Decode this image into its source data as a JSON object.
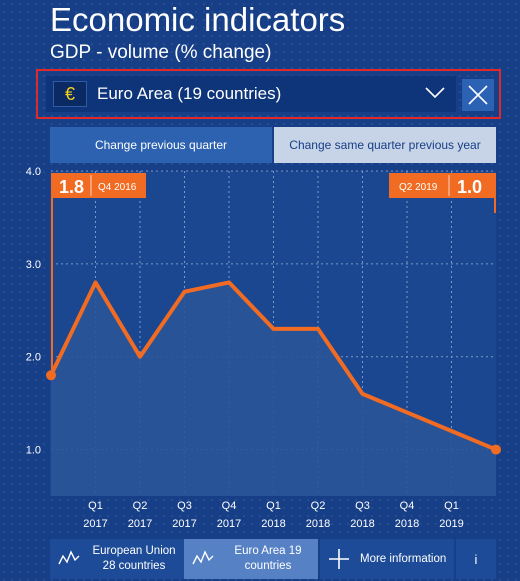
{
  "header": {
    "title": "Economic indicators",
    "subtitle": "GDP - volume (% change)"
  },
  "selector": {
    "flag_symbol": "€",
    "selected": "Euro Area (19 countries)"
  },
  "tabs": [
    {
      "label": "Change previous quarter",
      "active": false
    },
    {
      "label": "Change same quarter previous year",
      "active": true
    }
  ],
  "chart_data": {
    "type": "area",
    "yticks": [
      "4.0",
      "3.0",
      "2.0",
      "1.0"
    ],
    "ylim": [
      0.5,
      4.0
    ],
    "x_ticks": [
      {
        "q": "Q1",
        "year": "2017"
      },
      {
        "q": "Q2",
        "year": "2017"
      },
      {
        "q": "Q3",
        "year": "2017"
      },
      {
        "q": "Q4",
        "year": "2017"
      },
      {
        "q": "Q1",
        "year": "2018"
      },
      {
        "q": "Q2",
        "year": "2018"
      },
      {
        "q": "Q3",
        "year": "2018"
      },
      {
        "q": "Q4",
        "year": "2018"
      },
      {
        "q": "Q1",
        "year": "2019"
      }
    ],
    "series": [
      {
        "points": [
          {
            "x": "Q4 2016",
            "y": 1.8
          },
          {
            "x": "Q1 2017",
            "y": 2.8
          },
          {
            "x": "Q2 2017",
            "y": 2.0
          },
          {
            "x": "Q3 2017",
            "y": 2.7
          },
          {
            "x": "Q4 2017",
            "y": 2.8
          },
          {
            "x": "Q1 2018",
            "y": 2.3
          },
          {
            "x": "Q2 2018",
            "y": 2.3
          },
          {
            "x": "Q3 2018",
            "y": 1.6
          },
          {
            "x": "Q4 2018",
            "y": 1.4
          },
          {
            "x": "Q1 2019",
            "y": 1.2
          },
          {
            "x": "Q2 2019",
            "y": 1.0
          }
        ]
      }
    ],
    "start_flag": {
      "value": "1.8",
      "period": "Q4 2016"
    },
    "end_flag": {
      "value": "1.0",
      "period": "Q2 2019"
    },
    "colors": {
      "line": "#f26b22",
      "flag": "#f26b22",
      "area": "#2a5598",
      "grid": "#7b98c9"
    }
  },
  "bottom_bar": {
    "eu_line1": "European Union",
    "eu_line2": "28 countries",
    "ea_line1": "Euro Area 19",
    "ea_line2": "countries",
    "more_label": "More information",
    "info_label": "i"
  }
}
